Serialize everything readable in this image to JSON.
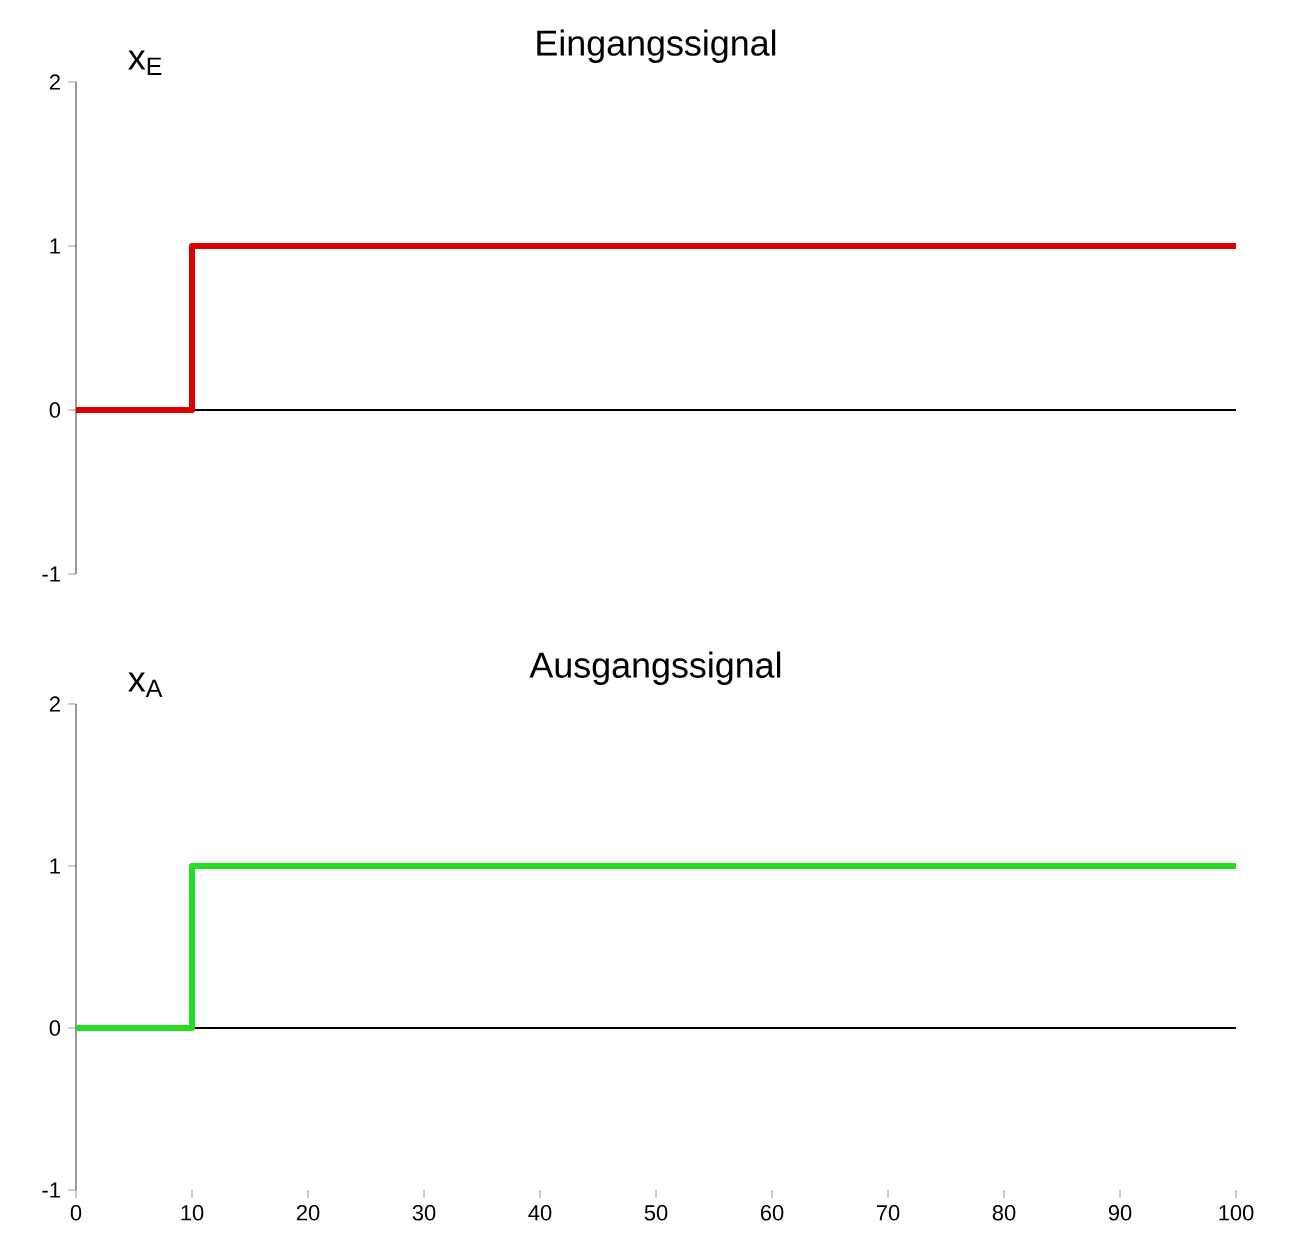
{
  "chart_data": [
    {
      "type": "line",
      "title": "Eingangssignal",
      "ylabel": "x$_{E}$",
      "x": [
        0,
        10,
        10,
        100
      ],
      "series": [
        {
          "color": "#dd0000",
          "values": [
            0,
            0,
            1,
            1
          ]
        }
      ],
      "xlim": [
        0,
        100
      ],
      "ylim": [
        -1,
        2
      ],
      "yticks": [
        -1,
        0,
        1,
        2
      ],
      "tick_labels": "y",
      "ref_lines": [
        {
          "axis": "y",
          "value": 0,
          "color": "#000000"
        }
      ]
    },
    {
      "type": "line",
      "title": "Ausgangssignal",
      "ylabel": "x$_{A}$",
      "x": [
        0,
        10,
        10,
        100
      ],
      "series": [
        {
          "color": "#22dd22",
          "values": [
            0,
            0,
            1,
            1
          ]
        }
      ],
      "xlim": [
        0,
        100
      ],
      "ylim": [
        -1,
        2
      ],
      "yticks": [
        -1,
        0,
        1,
        2
      ],
      "xticks": [
        0,
        10,
        20,
        30,
        40,
        50,
        60,
        70,
        80,
        90,
        100
      ],
      "ref_lines": [
        {
          "axis": "y",
          "value": 0,
          "color": "#000000"
        }
      ]
    }
  ]
}
